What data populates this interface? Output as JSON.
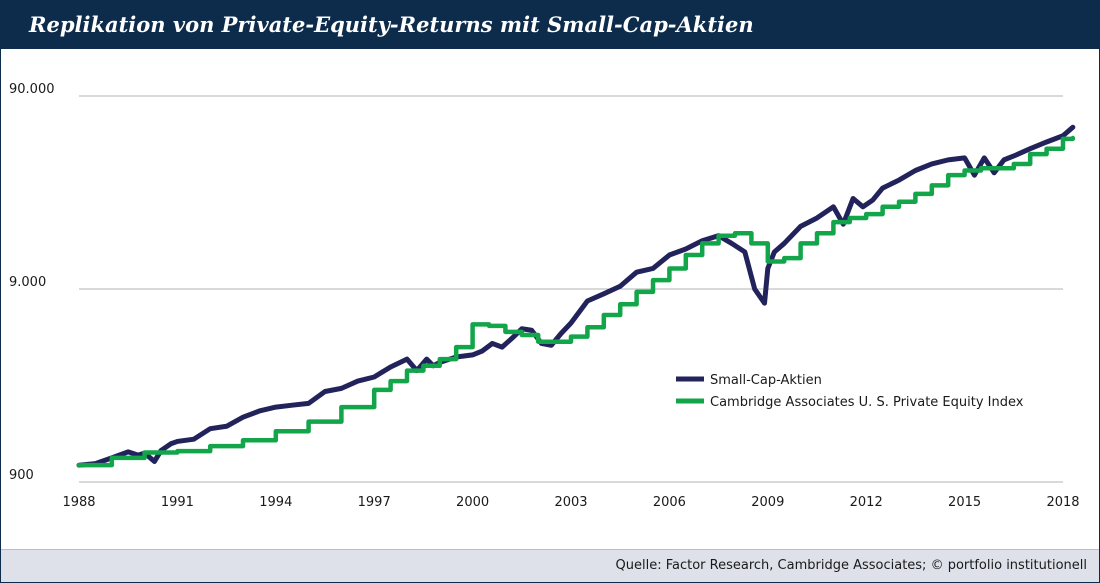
{
  "header": {
    "title": "Replikation von Private-Equity-Returns mit Small-Cap-Aktien"
  },
  "footer": {
    "source": "Quelle: Factor Research, Cambridge Associates; © portfolio institutionell"
  },
  "colors": {
    "small_cap": "#23235c",
    "cambridge": "#12a54a",
    "grid": "#b3b3b3",
    "header": "#0d2b4b"
  },
  "chart_data": {
    "type": "line",
    "title": "Replikation von Private-Equity-Returns mit Small-Cap-Aktien",
    "xlabel": "",
    "ylabel": "",
    "y_scale": "log",
    "ylim": [
      900,
      90000
    ],
    "xlim": [
      1988,
      2018
    ],
    "y_ticks": [
      {
        "value": 900,
        "label": "900"
      },
      {
        "value": 9000,
        "label": "9.000"
      },
      {
        "value": 90000,
        "label": "90.000"
      }
    ],
    "x_ticks": [
      "1988",
      "1991",
      "1994",
      "1997",
      "2000",
      "2003",
      "2006",
      "2009",
      "2012",
      "2015",
      "2018"
    ],
    "grid": true,
    "legend_position": "center-right",
    "series": [
      {
        "name": "Small-Cap-Aktien",
        "color": "#23235c",
        "x": [
          1988.0,
          1988.5,
          1989.0,
          1989.5,
          1989.8,
          1990.0,
          1990.3,
          1990.5,
          1990.8,
          1991.0,
          1991.5,
          1992.0,
          1992.5,
          1993.0,
          1993.5,
          1994.0,
          1994.5,
          1995.0,
          1995.5,
          1996.0,
          1996.5,
          1997.0,
          1997.5,
          1998.0,
          1998.3,
          1998.6,
          1998.8,
          1999.0,
          1999.5,
          2000.0,
          2000.3,
          2000.6,
          2000.9,
          2001.2,
          2001.5,
          2001.8,
          2002.1,
          2002.4,
          2002.7,
          2003.0,
          2003.5,
          2004.0,
          2004.5,
          2005.0,
          2005.5,
          2006.0,
          2006.5,
          2007.0,
          2007.5,
          2007.9,
          2008.3,
          2008.6,
          2008.9,
          2009.0,
          2009.2,
          2009.5,
          2010.0,
          2010.5,
          2011.0,
          2011.3,
          2011.6,
          2011.9,
          2012.2,
          2012.5,
          2013.0,
          2013.5,
          2014.0,
          2014.5,
          2015.0,
          2015.3,
          2015.6,
          2015.9,
          2016.2,
          2016.5,
          2017.0,
          2017.5,
          2018.0,
          2018.3
        ],
        "y": [
          1100,
          1120,
          1200,
          1290,
          1240,
          1270,
          1150,
          1310,
          1420,
          1460,
          1500,
          1700,
          1750,
          1950,
          2100,
          2200,
          2250,
          2300,
          2650,
          2750,
          3000,
          3150,
          3550,
          3900,
          3400,
          3900,
          3600,
          3750,
          4000,
          4100,
          4300,
          4700,
          4500,
          5000,
          5600,
          5500,
          4700,
          4600,
          5300,
          6000,
          7800,
          8500,
          9300,
          11000,
          11500,
          13500,
          14500,
          16000,
          17000,
          15500,
          14000,
          9000,
          7600,
          11500,
          14000,
          15500,
          19000,
          21000,
          24000,
          19500,
          26500,
          24000,
          26000,
          30000,
          33000,
          37000,
          40000,
          42000,
          43000,
          35000,
          43000,
          36000,
          42000,
          44000,
          48000,
          52000,
          56000,
          62000
        ]
      },
      {
        "name": "Cambridge Associates U. S. Private Equity Index",
        "color": "#12a54a",
        "x": [
          1988.0,
          1989.0,
          1990.0,
          1991.0,
          1992.0,
          1993.0,
          1994.0,
          1995.0,
          1996.0,
          1997.0,
          1997.5,
          1998.0,
          1998.5,
          1999.0,
          1999.5,
          2000.0,
          2000.5,
          2001.0,
          2001.5,
          2002.0,
          2002.5,
          2003.0,
          2003.5,
          2004.0,
          2004.5,
          2005.0,
          2005.5,
          2006.0,
          2006.5,
          2007.0,
          2007.5,
          2008.0,
          2008.5,
          2009.0,
          2009.5,
          2010.0,
          2010.5,
          2011.0,
          2011.5,
          2012.0,
          2012.5,
          2013.0,
          2013.5,
          2014.0,
          2014.5,
          2015.0,
          2015.5,
          2016.0,
          2016.5,
          2017.0,
          2017.5,
          2018.0,
          2018.3
        ],
        "y": [
          1100,
          1200,
          1280,
          1300,
          1380,
          1480,
          1650,
          1850,
          2200,
          2700,
          3000,
          3400,
          3600,
          3900,
          4500,
          5900,
          5800,
          5400,
          5200,
          4800,
          4800,
          5100,
          5700,
          6600,
          7500,
          8700,
          10000,
          11500,
          13500,
          15500,
          17000,
          17500,
          15500,
          12500,
          13000,
          15500,
          17500,
          20000,
          21000,
          22000,
          24000,
          25500,
          28000,
          31000,
          35000,
          37000,
          38000,
          38000,
          40000,
          45000,
          48000,
          54000,
          54500
        ]
      }
    ]
  }
}
